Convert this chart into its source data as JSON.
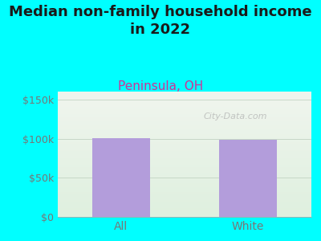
{
  "title": "Median non-family household income\nin 2022",
  "subtitle": "Peninsula, OH",
  "categories": [
    "All",
    "White"
  ],
  "values": [
    101000,
    98000
  ],
  "bar_color": "#b39ddb",
  "bg_color": "#00FFFF",
  "plot_bg_top": "#f0f5ee",
  "plot_bg_bottom": "#dff0df",
  "title_color": "#1a1a1a",
  "subtitle_color": "#cc3399",
  "tick_color": "#777777",
  "yticks": [
    0,
    50000,
    100000,
    150000
  ],
  "ytick_labels": [
    "$0",
    "$50k",
    "$100k",
    "$150k"
  ],
  "ylim": [
    0,
    160000
  ],
  "watermark": "City-Data.com",
  "title_fontsize": 13,
  "subtitle_fontsize": 11
}
